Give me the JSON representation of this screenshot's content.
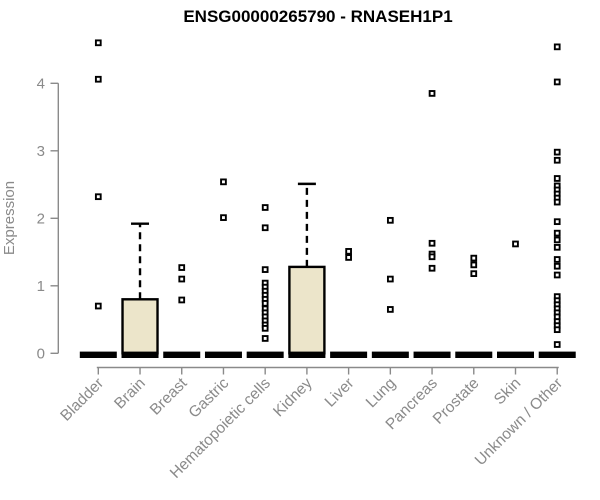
{
  "title": "ENSG00000265790 - RNASEH1P1",
  "chart_data": {
    "type": "boxplot",
    "title": "ENSG00000265790 - RNASEH1P1",
    "xlabel": "",
    "ylabel": "Expression",
    "yticks": [
      0,
      1,
      2,
      3,
      4
    ],
    "ylim": [
      0,
      4.75
    ],
    "grid": "off",
    "legend": "none",
    "categories": [
      "Bladder",
      "Brain",
      "Breast",
      "Gastric",
      "Hematopoietic cells",
      "Kidney",
      "Liver",
      "Lung",
      "Pancreas",
      "Prostate",
      "Skin",
      "Unknown / Other"
    ],
    "series": [
      {
        "category": "Bladder",
        "q1": 0,
        "median": 0,
        "q3": 0,
        "whisker_low": 0,
        "whisker_high": 0,
        "outliers": [
          4.6,
          4.06,
          2.32,
          0.7
        ]
      },
      {
        "category": "Brain",
        "q1": 0,
        "median": 0,
        "q3": 0.8,
        "whisker_low": 0,
        "whisker_high": 1.92,
        "outliers": []
      },
      {
        "category": "Breast",
        "q1": 0,
        "median": 0,
        "q3": 0,
        "whisker_low": 0,
        "whisker_high": 0,
        "outliers": [
          1.27,
          1.1,
          0.79
        ]
      },
      {
        "category": "Gastric",
        "q1": 0,
        "median": 0,
        "q3": 0,
        "whisker_low": 0,
        "whisker_high": 0,
        "outliers": [
          2.54,
          2.01
        ]
      },
      {
        "category": "Hematopoietic cells",
        "q1": 0,
        "median": 0,
        "q3": 0,
        "whisker_low": 0,
        "whisker_high": 0,
        "outliers": [
          2.16,
          1.86,
          1.24,
          1.04,
          0.98,
          0.92,
          0.86,
          0.8,
          0.74,
          0.66,
          0.6,
          0.54,
          0.48,
          0.42,
          0.37,
          0.22
        ]
      },
      {
        "category": "Kidney",
        "q1": 0,
        "median": 0,
        "q3": 1.28,
        "whisker_low": 0,
        "whisker_high": 2.51,
        "outliers": []
      },
      {
        "category": "Liver",
        "q1": 0,
        "median": 0,
        "q3": 0,
        "whisker_low": 0,
        "whisker_high": 0,
        "outliers": [
          1.51,
          1.42
        ]
      },
      {
        "category": "Lung",
        "q1": 0,
        "median": 0,
        "q3": 0,
        "whisker_low": 0,
        "whisker_high": 0,
        "outliers": [
          1.97,
          1.1,
          0.65
        ]
      },
      {
        "category": "Pancreas",
        "q1": 0,
        "median": 0,
        "q3": 0,
        "whisker_low": 0,
        "whisker_high": 0,
        "outliers": [
          3.85,
          1.63,
          1.47,
          1.43,
          1.26
        ]
      },
      {
        "category": "Prostate",
        "q1": 0,
        "median": 0,
        "q3": 0,
        "whisker_low": 0,
        "whisker_high": 0,
        "outliers": [
          1.41,
          1.31,
          1.18
        ]
      },
      {
        "category": "Skin",
        "q1": 0,
        "median": 0,
        "q3": 0,
        "whisker_low": 0,
        "whisker_high": 0,
        "outliers": [
          1.62
        ]
      },
      {
        "category": "Unknown / Other",
        "q1": 0,
        "median": 0,
        "q3": 0,
        "whisker_low": 0,
        "whisker_high": 0,
        "outliers": [
          4.54,
          4.02,
          2.98,
          2.86,
          2.59,
          2.48,
          2.42,
          2.36,
          2.3,
          2.24,
          1.95,
          1.78,
          1.68,
          1.57,
          1.39,
          1.29,
          1.16,
          0.84,
          0.78,
          0.72,
          0.66,
          0.6,
          0.54,
          0.47,
          0.41,
          0.35,
          0.13
        ]
      }
    ],
    "colors": {
      "box_fill": "#ece5ca",
      "box_stroke": "#000000",
      "median_bar": "#000000",
      "whisker": "#000000",
      "outlier_stroke": "#000000",
      "outlier_fill": "#ffffff",
      "axis": "#8a8a8a",
      "tick_label": "#8a8a8a",
      "title": "#000000"
    }
  }
}
